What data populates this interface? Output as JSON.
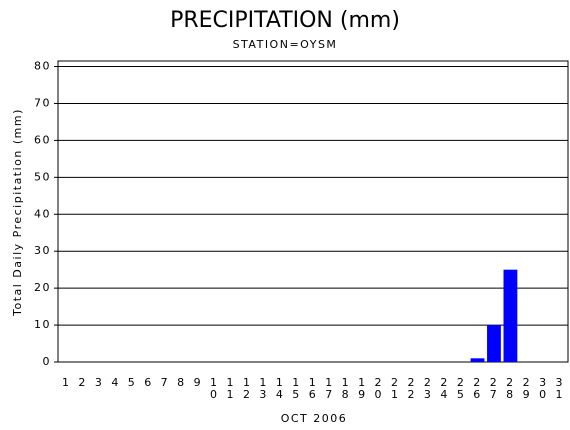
{
  "chart_data": {
    "type": "bar",
    "title": "PRECIPITATION (mm)",
    "subtitle": "STATION=OYSM",
    "y_label": "Total Daily Precipitation (mm)",
    "x_label": "OCT 2006",
    "categories": [
      "1",
      "2",
      "3",
      "4",
      "5",
      "6",
      "7",
      "8",
      "9",
      "10",
      "11",
      "12",
      "13",
      "14",
      "15",
      "16",
      "17",
      "18",
      "19",
      "20",
      "21",
      "22",
      "23",
      "24",
      "25",
      "26",
      "27",
      "28",
      "29",
      "30",
      "31"
    ],
    "values": [
      0,
      0,
      0,
      0,
      0,
      0,
      0,
      0,
      0,
      0,
      0,
      0,
      0,
      0,
      0,
      0,
      0,
      0,
      0,
      0,
      0,
      0,
      0,
      0,
      0,
      1,
      10,
      25,
      0,
      0,
      0
    ],
    "color": "#0000ff",
    "ylim": [
      0,
      81.5
    ],
    "yticks": [
      0,
      10,
      20,
      30,
      40,
      50,
      60,
      70,
      80
    ],
    "grid": true
  }
}
